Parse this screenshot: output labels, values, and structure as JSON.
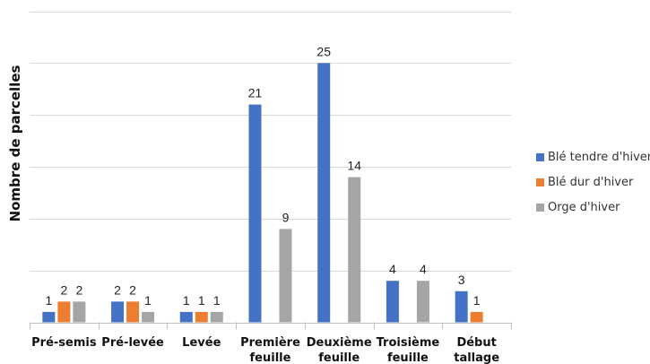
{
  "chart_data": {
    "type": "bar",
    "categories": [
      [
        "Pré-semis"
      ],
      [
        "Pré-levée"
      ],
      [
        "Levée"
      ],
      [
        "Première",
        "feuille"
      ],
      [
        "Deuxième",
        "feuille"
      ],
      [
        "Troisième",
        "feuille"
      ],
      [
        "Début",
        "tallage"
      ]
    ],
    "series": [
      {
        "name": "Blé tendre d'hiver",
        "color": "#4472C4",
        "values": [
          1,
          2,
          1,
          21,
          25,
          4,
          3
        ]
      },
      {
        "name": "Blé dur d'hiver",
        "color": "#ED7D31",
        "values": [
          2,
          2,
          1,
          null,
          null,
          null,
          1
        ]
      },
      {
        "name": "Orge d'hiver",
        "color": "#A5A5A5",
        "values": [
          2,
          1,
          1,
          9,
          14,
          4,
          null
        ]
      }
    ],
    "title": "",
    "xlabel": "",
    "ylabel": "Nombre de parcelles",
    "ylim": [
      0,
      30
    ],
    "gridlines": true,
    "legend_position": "right"
  }
}
